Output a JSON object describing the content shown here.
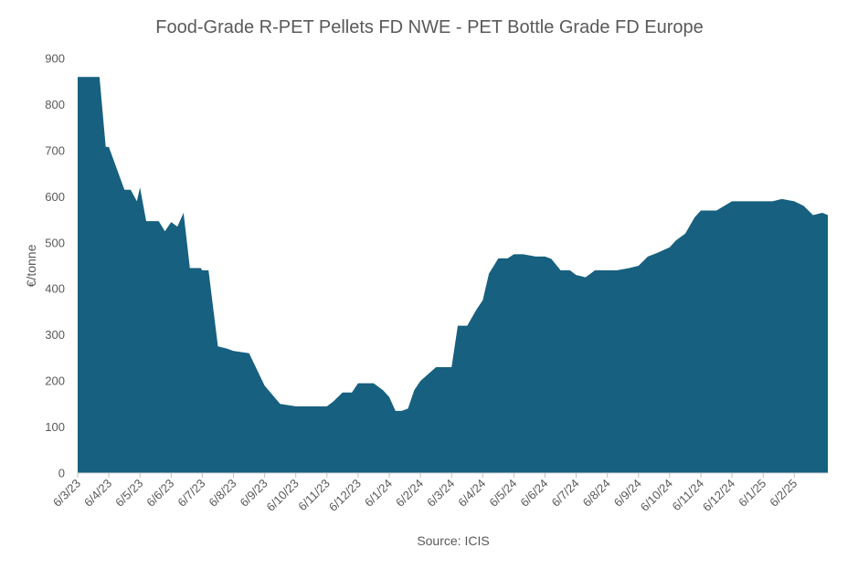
{
  "chart_data": {
    "type": "area",
    "title": "Food-Grade R-PET Pellets FD NWE  - PET Bottle Grade FD Europe",
    "ylabel": "€/tonne",
    "xlabel": "",
    "source": "Source: ICIS",
    "ylim": [
      0,
      900
    ],
    "yticks": [
      0,
      100,
      200,
      300,
      400,
      500,
      600,
      700,
      800,
      900
    ],
    "grid": false,
    "legend": "none",
    "color": "#17607F",
    "xtick_labels": [
      "6/3/23",
      "6/4/23",
      "6/5/23",
      "6/6/23",
      "6/7/23",
      "6/8/23",
      "6/9/23",
      "6/10/23",
      "6/11/23",
      "6/12/23",
      "6/1/24",
      "6/2/24",
      "6/3/24",
      "6/4/24",
      "6/5/24",
      "6/6/24",
      "6/7/24",
      "6/8/24",
      "6/9/24",
      "6/10/24",
      "6/11/24",
      "6/12/24",
      "6/1/25",
      "6/2/25"
    ],
    "x_month_index": [
      0,
      0.5,
      0.7,
      0.9,
      1.0,
      1.5,
      1.7,
      1.9,
      2.0,
      2.2,
      2.4,
      2.6,
      2.8,
      3.0,
      3.2,
      3.4,
      3.6,
      3.8,
      3.95,
      4.0,
      4.2,
      4.5,
      4.8,
      5.0,
      5.5,
      6.0,
      6.5,
      7.0,
      7.2,
      7.5,
      8.0,
      8.2,
      8.5,
      8.8,
      9.0,
      9.2,
      9.5,
      9.8,
      10.0,
      10.2,
      10.4,
      10.6,
      10.8,
      11.0,
      11.2,
      11.5,
      12.0,
      12.2,
      12.5,
      12.8,
      13.0,
      13.2,
      13.5,
      13.8,
      14.0,
      14.3,
      14.7,
      15.0,
      15.2,
      15.5,
      15.8,
      16.0,
      16.3,
      16.6,
      17.0,
      17.3,
      17.7,
      18.0,
      18.3,
      18.6,
      19.0,
      19.2,
      19.5,
      19.8,
      20.0,
      20.5,
      21.0,
      21.3,
      21.6,
      22.0,
      22.3,
      22.6,
      23.0,
      23.3,
      23.6,
      23.9,
      24.1,
      24.3
    ],
    "values": [
      860,
      860,
      860,
      708,
      708,
      615,
      615,
      590,
      620,
      547,
      547,
      547,
      525,
      545,
      535,
      565,
      445,
      445,
      445,
      440,
      440,
      275,
      270,
      265,
      260,
      190,
      150,
      145,
      145,
      145,
      145,
      155,
      175,
      175,
      195,
      195,
      195,
      180,
      165,
      135,
      135,
      140,
      180,
      200,
      212,
      230,
      230,
      320,
      320,
      355,
      375,
      433,
      466,
      466,
      475,
      475,
      470,
      470,
      465,
      440,
      440,
      430,
      425,
      440,
      440,
      440,
      445,
      450,
      470,
      478,
      490,
      505,
      520,
      555,
      570,
      570,
      590,
      590,
      590,
      590,
      590,
      595,
      590,
      580,
      560,
      565,
      560,
      570
    ]
  }
}
